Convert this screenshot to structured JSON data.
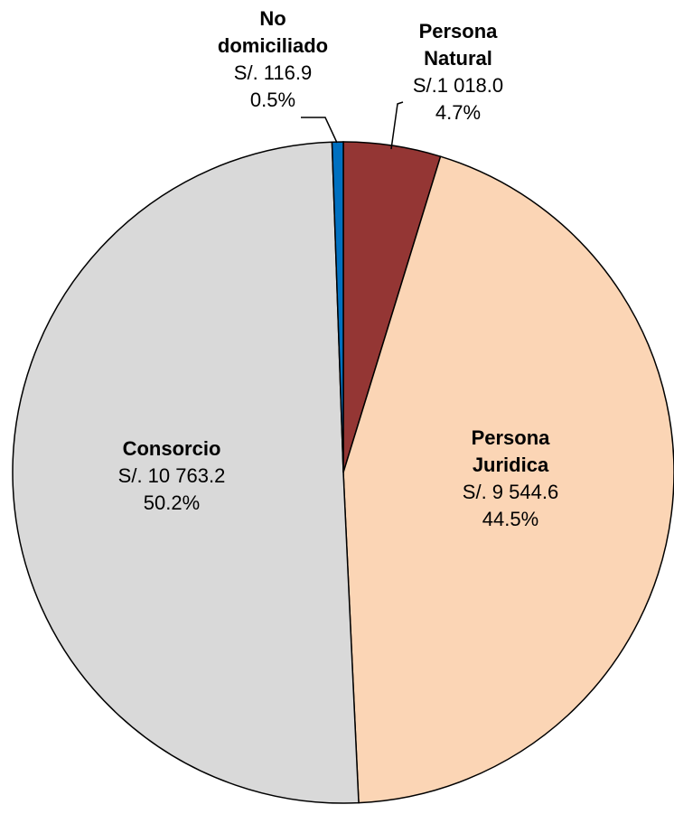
{
  "chart_data": {
    "type": "pie",
    "categories": [
      "Persona Natural",
      "Persona Juridica",
      "Consorcio",
      "No domiciliado"
    ],
    "values": [
      1018.0,
      9544.6,
      10763.2,
      116.9
    ],
    "value_labels": [
      "S/.1 018.0",
      "S/. 9 544.6",
      "S/. 10 763.2",
      "S/. 116.9"
    ],
    "percentages": [
      4.7,
      44.5,
      50.2,
      0.5
    ],
    "percentage_labels": [
      "4.7%",
      "44.5%",
      "50.2%",
      "0.5%"
    ],
    "colors": [
      "#943634",
      "#fbd5b5",
      "#d9d9d9",
      "#0070c0"
    ]
  }
}
